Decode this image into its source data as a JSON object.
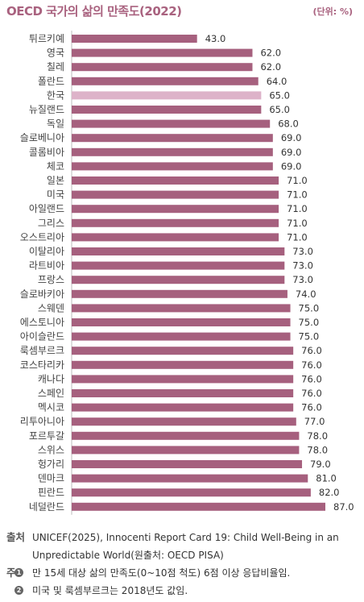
{
  "header": {
    "title": "OECD 국가의 삶의 만족도(2022)",
    "unit": "(단위: %)"
  },
  "colors": {
    "bar": "#a6607e",
    "highlight": "#ddb3c9",
    "title": "#a9627f"
  },
  "chart_data": {
    "type": "bar",
    "orientation": "horizontal",
    "highlight_category": "한국",
    "categories": [
      "튀르키예",
      "영국",
      "칠레",
      "폴란드",
      "한국",
      "뉴질랜드",
      "독일",
      "슬로베니아",
      "콜롬비아",
      "체코",
      "일본",
      "미국",
      "아일랜드",
      "그리스",
      "오스트리아",
      "이탈리아",
      "라트비아",
      "프랑스",
      "슬로바키아",
      "스웨덴",
      "에스토니아",
      "아이슬란드",
      "룩셈부르크",
      "코스타리카",
      "캐나다",
      "스페인",
      "멕시코",
      "리투아니아",
      "포르투갈",
      "스위스",
      "헝가리",
      "덴마크",
      "핀란드",
      "네덜란드"
    ],
    "values": [
      43.0,
      62.0,
      62.0,
      64.0,
      65.0,
      65.0,
      68.0,
      69.0,
      69.0,
      69.0,
      71.0,
      71.0,
      71.0,
      71.0,
      71.0,
      73.0,
      73.0,
      73.0,
      74.0,
      75.0,
      75.0,
      75.0,
      76.0,
      76.0,
      76.0,
      76.0,
      76.0,
      77.0,
      78.0,
      78.0,
      79.0,
      81.0,
      82.0,
      87.0
    ],
    "value_labels": [
      "43.0",
      "62.0",
      "62.0",
      "64.0",
      "65.0",
      "65.0",
      "68.0",
      "69.0",
      "69.0",
      "69.0",
      "71.0",
      "71.0",
      "71.0",
      "71.0",
      "71.0",
      "73.0",
      "73.0",
      "73.0",
      "74.0",
      "75.0",
      "75.0",
      "75.0",
      "76.0",
      "76.0",
      "76.0",
      "76.0",
      "76.0",
      "77.0",
      "78.0",
      "78.0",
      "79.0",
      "81.0",
      "82.0",
      "87.0"
    ],
    "xlim": [
      0,
      87
    ]
  },
  "footer": {
    "source_key": "출처",
    "source_text_1": "UNICEF(2025), Innocenti Report Card 19: Child Well-Being in an",
    "source_text_2": "Unpredictable World(원출처: OECD PISA)",
    "note_key": "주",
    "note1_num": "1",
    "note1_text": "만 15세 대상 삶의 만족도(0~10점 척도) 6점 이상 응답비율임.",
    "note2_num": "2",
    "note2_text": "미국 및 룩셈부르크는 2018년도 값임."
  }
}
